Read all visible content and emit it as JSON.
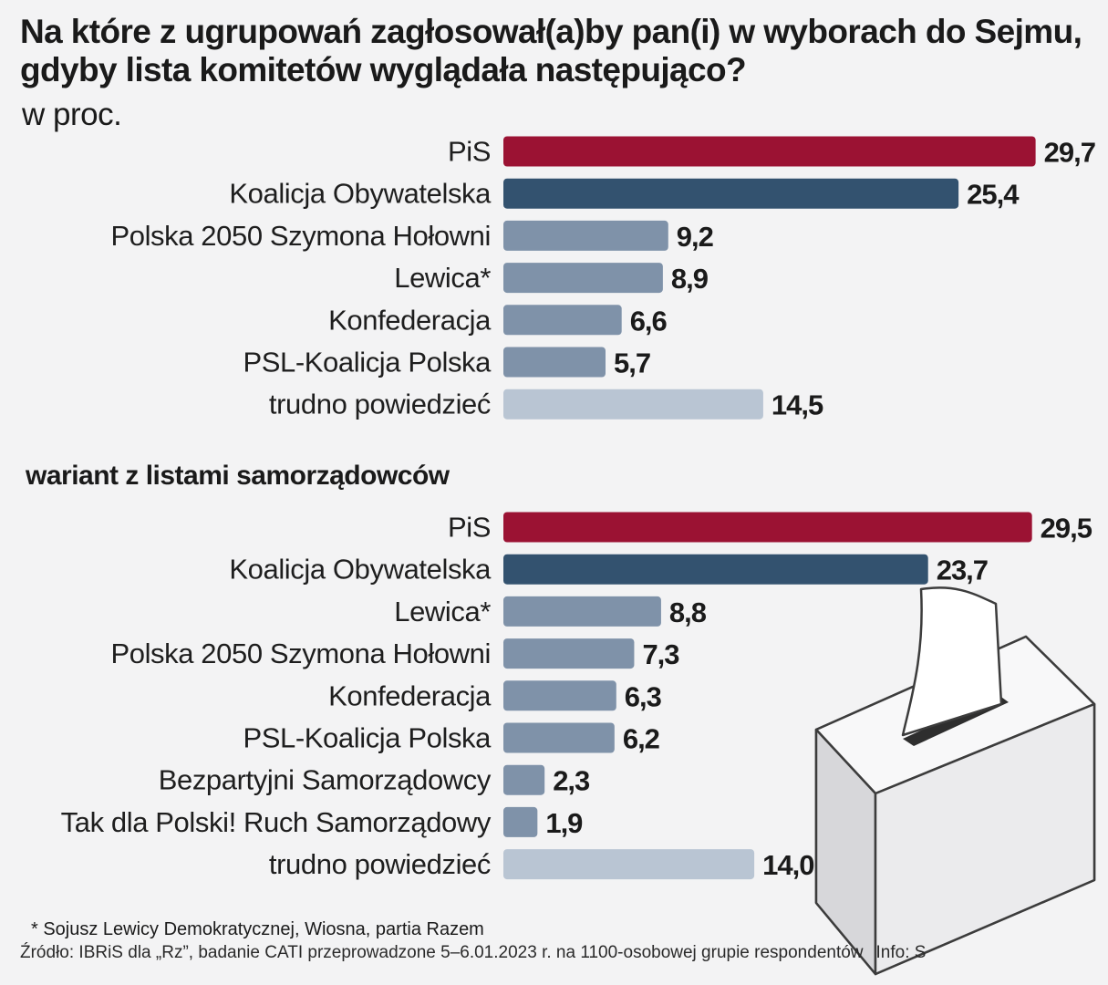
{
  "title": "Na które z ugrupowań zagłosował(a)by pan(i) w wyborach do Sejmu, gdyby lista komitetów wyglądała następująco?",
  "subtitle": "w proc.",
  "colors": {
    "pis": "#9b1233",
    "ko": "#33526f",
    "other": "#7f92a9",
    "undecided": "#b9c5d3"
  },
  "chart_data": [
    {
      "type": "bar",
      "orientation": "horizontal",
      "title": "",
      "categories": [
        "PiS",
        "Koalicja Obywatelska",
        "Polska 2050 Szymona Hołowni",
        "Lewica*",
        "Konfederacja",
        "PSL-Koalicja Polska",
        "trudno powiedzieć"
      ],
      "values": [
        29.7,
        25.4,
        9.2,
        8.9,
        6.6,
        5.7,
        14.5
      ],
      "value_labels": [
        "29,7",
        "25,4",
        "9,2",
        "8,9",
        "6,6",
        "5,7",
        "14,5"
      ],
      "bar_colors": [
        "#9b1233",
        "#33526f",
        "#7f92a9",
        "#7f92a9",
        "#7f92a9",
        "#7f92a9",
        "#b9c5d3"
      ],
      "xlim": [
        0,
        30
      ],
      "grid": false,
      "legend": "none"
    },
    {
      "type": "bar",
      "orientation": "horizontal",
      "title": "wariant z listami samorządowców",
      "categories": [
        "PiS",
        "Koalicja Obywatelska",
        "Lewica*",
        "Polska 2050 Szymona Hołowni",
        "Konfederacja",
        "PSL-Koalicja Polska",
        "Bezpartyjni Samorządowcy",
        "Tak dla Polski! Ruch Samorządowy",
        "trudno powiedzieć"
      ],
      "values": [
        29.5,
        23.7,
        8.8,
        7.3,
        6.3,
        6.2,
        2.3,
        1.9,
        14.0
      ],
      "value_labels": [
        "29,5",
        "23,7",
        "8,8",
        "7,3",
        "6,3",
        "6,2",
        "2,3",
        "1,9",
        "14,0"
      ],
      "bar_colors": [
        "#9b1233",
        "#33526f",
        "#7f92a9",
        "#7f92a9",
        "#7f92a9",
        "#7f92a9",
        "#7f92a9",
        "#7f92a9",
        "#b9c5d3"
      ],
      "xlim": [
        0,
        30
      ],
      "grid": false,
      "legend": "none"
    }
  ],
  "illustration": {
    "icon": "ballot-box-icon"
  },
  "footnote": "* Sojusz Lewicy Demokratycznej, Wiosna, partia Razem",
  "source": "Źródło: IBRiS dla „Rz”, badanie CATI przeprowadzone 5–6.01.2023 r. na 1100-osobowej grupie respondentów",
  "info": "Info: S"
}
